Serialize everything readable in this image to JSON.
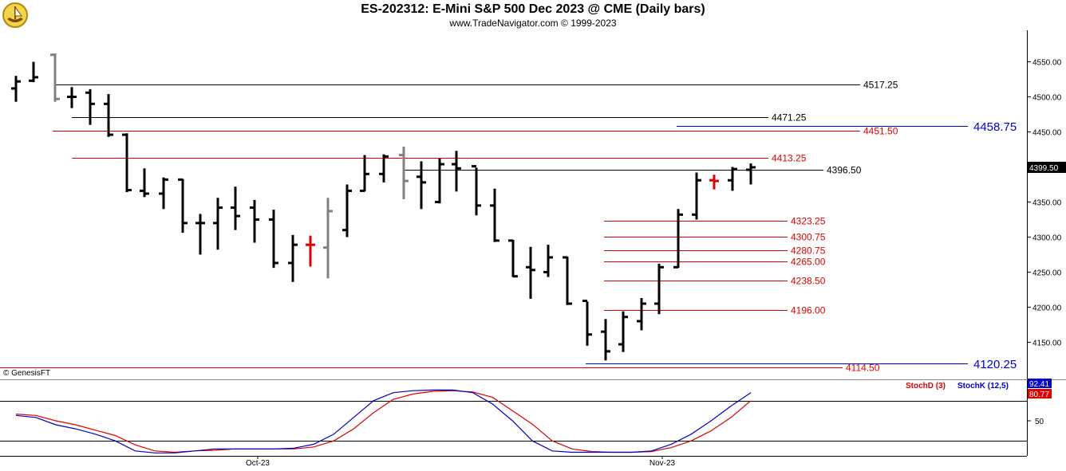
{
  "header": {
    "title": "ES-202312:  E-Mini S&P 500 Dec 2023 @ CME  (Daily bars)",
    "subtitle": "www.TradeNavigator.com © 1999-2023"
  },
  "footer": {
    "copyright": "© GenesisFT"
  },
  "colors": {
    "background": "#ffffff",
    "bar": "#000000",
    "bar_alt": "#808080",
    "bar_up_tick": "#00cc00",
    "level_red": "#dd0000",
    "level_blue": "#0000cc",
    "level_black": "#000000",
    "stoch_d": "#dd0000",
    "stoch_k": "#0000cc",
    "last_price_bg": "#000000"
  },
  "chart_data": [
    {
      "type": "ohlc",
      "title": "ES-202312:  E-Mini S&P 500 Dec 2023 @ CME  (Daily bars)",
      "y_axis_ticks": [
        4550,
        4500,
        4450,
        4400,
        4350,
        4300,
        4250,
        4200,
        4150
      ],
      "y_tick_labels": [
        "4550.00",
        "4500.00",
        "4450.00",
        "4400.00",
        "4350.00",
        "4300.00",
        "4250.00",
        "4200.00",
        "4150.00"
      ],
      "ylim": [
        4097,
        4595
      ],
      "last_price": "4399.50",
      "x_tick_labels": [
        "Oct-23",
        "Nov-23"
      ],
      "bars": [
        {
          "o": 4512,
          "h": 4530,
          "l": 4493,
          "c": 4522,
          "color": "black"
        },
        {
          "o": 4523,
          "h": 4550,
          "l": 4521,
          "c": 4528,
          "color": "black"
        },
        {
          "o": 4560,
          "h": 4562,
          "l": 4493,
          "c": 4497,
          "color": "gray"
        },
        {
          "o": 4500,
          "h": 4514,
          "l": 4484,
          "c": 4500,
          "color": "black"
        },
        {
          "o": 4506,
          "h": 4511,
          "l": 4460,
          "c": 4490,
          "color": "black"
        },
        {
          "o": 4490,
          "h": 4504,
          "l": 4443,
          "c": 4446,
          "color": "black"
        },
        {
          "o": 4446,
          "h": 4448,
          "l": 4364,
          "c": 4367,
          "color": "black"
        },
        {
          "o": 4366,
          "h": 4398,
          "l": 4357,
          "c": 4362,
          "color": "black"
        },
        {
          "o": 4362,
          "h": 4385,
          "l": 4340,
          "c": 4382,
          "color": "black"
        },
        {
          "o": 4382,
          "h": 4383,
          "l": 4306,
          "c": 4320,
          "color": "black"
        },
        {
          "o": 4320,
          "h": 4333,
          "l": 4275,
          "c": 4320,
          "color": "black"
        },
        {
          "o": 4320,
          "h": 4356,
          "l": 4282,
          "c": 4342,
          "color": "black"
        },
        {
          "o": 4342,
          "h": 4372,
          "l": 4310,
          "c": 4330,
          "color": "black"
        },
        {
          "o": 4342,
          "h": 4353,
          "l": 4292,
          "c": 4325,
          "color": "black"
        },
        {
          "o": 4325,
          "h": 4339,
          "l": 4256,
          "c": 4263,
          "color": "black"
        },
        {
          "o": 4263,
          "h": 4303,
          "l": 4236,
          "c": 4289,
          "color": "black"
        },
        {
          "o": 4289,
          "h": 4302,
          "l": 4258,
          "c": 4289,
          "color": "red"
        },
        {
          "o": 4285,
          "h": 4356,
          "l": 4241,
          "c": 4337,
          "color": "gray"
        },
        {
          "o": 4310,
          "h": 4375,
          "l": 4300,
          "c": 4366,
          "color": "black"
        },
        {
          "o": 4366,
          "h": 4417,
          "l": 4365,
          "c": 4390,
          "color": "black"
        },
        {
          "o": 4390,
          "h": 4418,
          "l": 4378,
          "c": 4415,
          "color": "black"
        },
        {
          "o": 4417,
          "h": 4429,
          "l": 4354,
          "c": 4380,
          "color": "gray"
        },
        {
          "o": 4386,
          "h": 4408,
          "l": 4340,
          "c": 4378,
          "color": "black"
        },
        {
          "o": 4350,
          "h": 4412,
          "l": 4348,
          "c": 4404,
          "color": "black"
        },
        {
          "o": 4404,
          "h": 4423,
          "l": 4365,
          "c": 4398,
          "color": "black"
        },
        {
          "o": 4401,
          "h": 4399,
          "l": 4331,
          "c": 4345,
          "color": "black"
        },
        {
          "o": 4345,
          "h": 4369,
          "l": 4293,
          "c": 4295,
          "color": "black"
        },
        {
          "o": 4295,
          "h": 4296,
          "l": 4243,
          "c": 4244,
          "color": "black"
        },
        {
          "o": 4257,
          "h": 4286,
          "l": 4212,
          "c": 4253,
          "color": "black"
        },
        {
          "o": 4250,
          "h": 4289,
          "l": 4243,
          "c": 4271,
          "color": "black"
        },
        {
          "o": 4271,
          "h": 4272,
          "l": 4203,
          "c": 4205,
          "color": "black"
        },
        {
          "o": 4209,
          "h": 4208,
          "l": 4145,
          "c": 4161,
          "color": "black"
        },
        {
          "o": 4165,
          "h": 4183,
          "l": 4124,
          "c": 4137,
          "color": "black"
        },
        {
          "o": 4147,
          "h": 4194,
          "l": 4136,
          "c": 4186,
          "color": "black"
        },
        {
          "o": 4180,
          "h": 4213,
          "l": 4167,
          "c": 4205,
          "color": "black"
        },
        {
          "o": 4205,
          "h": 4262,
          "l": 4190,
          "c": 4257,
          "color": "black"
        },
        {
          "o": 4257,
          "h": 4340,
          "l": 4256,
          "c": 4332,
          "color": "black"
        },
        {
          "o": 4332,
          "h": 4392,
          "l": 4325,
          "c": 4381,
          "color": "black"
        },
        {
          "o": 4381,
          "h": 4389,
          "l": 4368,
          "c": 4380,
          "color": "red"
        },
        {
          "o": 4381,
          "h": 4400,
          "l": 4366,
          "c": 4397,
          "color": "black"
        },
        {
          "o": 4396,
          "h": 4405,
          "l": 4375,
          "c": 4399.5,
          "color": "black"
        }
      ],
      "levels": [
        {
          "value": 4517.25,
          "label": "4517.25",
          "color": "black"
        },
        {
          "value": 4471.25,
          "label": "4471.25",
          "color": "black"
        },
        {
          "value": 4458.75,
          "label": "4458.75",
          "color": "blue"
        },
        {
          "value": 4451.5,
          "label": "4451.50",
          "color": "red"
        },
        {
          "value": 4413.25,
          "label": "4413.25",
          "color": "red"
        },
        {
          "value": 4396.5,
          "label": "4396.50",
          "color": "black"
        },
        {
          "value": 4323.25,
          "label": "4323.25",
          "color": "red"
        },
        {
          "value": 4300.75,
          "label": "4300.75",
          "color": "red"
        },
        {
          "value": 4280.75,
          "label": "4280.75",
          "color": "red"
        },
        {
          "value": 4265.0,
          "label": "4265.00",
          "color": "red"
        },
        {
          "value": 4238.5,
          "label": "4238.50",
          "color": "red"
        },
        {
          "value": 4196.0,
          "label": "4196.00",
          "color": "red"
        },
        {
          "value": 4120.25,
          "label": "4120.25",
          "color": "blue"
        },
        {
          "value": 4114.5,
          "label": "4114.50",
          "color": "red"
        }
      ]
    },
    {
      "type": "line",
      "title": "",
      "legend": [
        "StochD (3)",
        "StochK (12,5)"
      ],
      "ylim": [
        0,
        100
      ],
      "y_tick_labels": [
        "50"
      ],
      "reference_lines": [
        80,
        20
      ],
      "last_values": {
        "stoch_k": "92.41",
        "stoch_d": "80.77"
      },
      "series": [
        {
          "name": "StochK (12,5)",
          "values": [
            58,
            55,
            44,
            38,
            30,
            20,
            5,
            2,
            2,
            5,
            8,
            8,
            8,
            8,
            9,
            15,
            30,
            55,
            80,
            92,
            95,
            96,
            96,
            92,
            75,
            50,
            20,
            5,
            3,
            3,
            3,
            3,
            5,
            15,
            30,
            50,
            72,
            92
          ]
        },
        {
          "name": "StochD (3)",
          "values": [
            60,
            58,
            50,
            44,
            36,
            28,
            14,
            5,
            3,
            5,
            6,
            8,
            8,
            8,
            8,
            11,
            20,
            38,
            62,
            82,
            90,
            94,
            95,
            93,
            85,
            65,
            45,
            20,
            8,
            4,
            3,
            3,
            4,
            10,
            20,
            35,
            55,
            80
          ]
        }
      ]
    }
  ]
}
